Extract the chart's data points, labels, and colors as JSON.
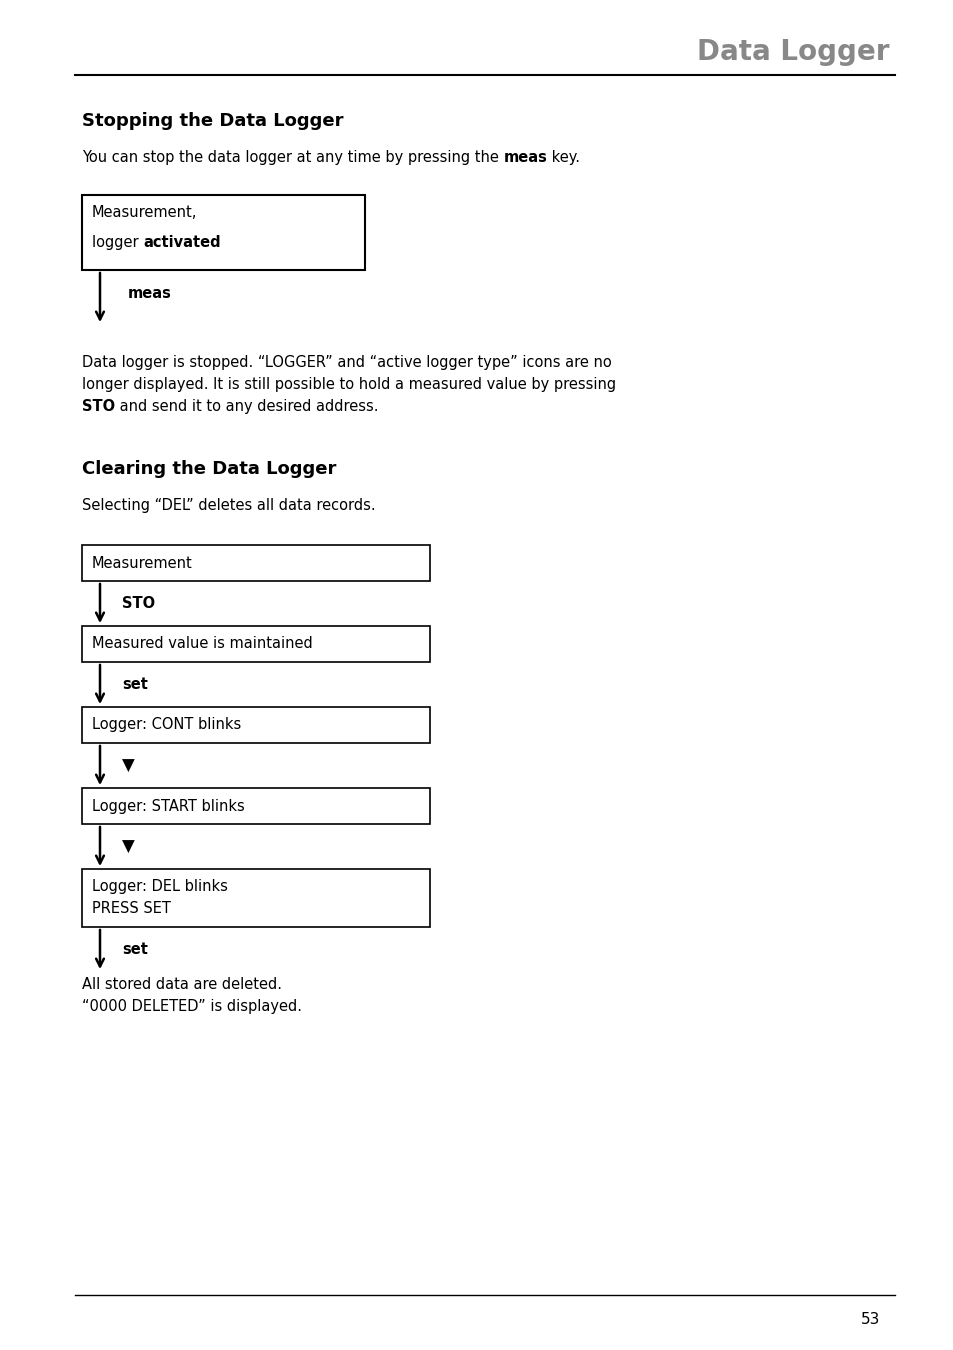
{
  "page_title": "Data Logger",
  "page_title_color": "#888888",
  "section1_heading": "Stopping the Data Logger",
  "section2_heading": "Clearing the Data Logger",
  "section1_intro_parts": [
    {
      "text": "You can stop the data logger at any time by pressing the ",
      "bold": false
    },
    {
      "text": "meas",
      "bold": true
    },
    {
      "text": " key.",
      "bold": false
    }
  ],
  "box1_lines": [
    [
      {
        "text": "Measurement,",
        "bold": false
      }
    ],
    [
      {
        "text": "logger ",
        "bold": false
      },
      {
        "text": "activated",
        "bold": true
      }
    ]
  ],
  "arrow1_label": "meas",
  "section1_body_lines": [
    [
      {
        "text": "Data logger is stopped. “LOGGER” and “active logger type” icons are no",
        "bold": false
      }
    ],
    [
      {
        "text": "longer displayed. It is still possible to hold a measured value by pressing",
        "bold": false
      }
    ],
    [
      {
        "text": "STO",
        "bold": true
      },
      {
        "text": " and send it to any desired address.",
        "bold": false
      }
    ]
  ],
  "section2_intro": "Selecting “DEL” deletes all data records.",
  "flow_boxes": [
    {
      "lines": [
        {
          "text": "Measurement",
          "bold": false
        }
      ]
    },
    {
      "lines": [
        {
          "text": "Measured value is maintained",
          "bold": false
        }
      ]
    },
    {
      "lines": [
        {
          "text": "Logger: CONT blinks",
          "bold": false
        }
      ]
    },
    {
      "lines": [
        {
          "text": "Logger: START blinks",
          "bold": false
        }
      ]
    },
    {
      "lines": [
        {
          "text": "Logger: DEL blinks",
          "bold": false
        },
        {
          "text": "PRESS SET",
          "bold": false
        }
      ]
    }
  ],
  "flow_arrow_labels": [
    {
      "text": "STO",
      "bold": true,
      "is_triangle": false
    },
    {
      "text": "set",
      "bold": true,
      "is_triangle": false
    },
    {
      "text": "▼",
      "bold": false,
      "is_triangle": true
    },
    {
      "text": "▼",
      "bold": false,
      "is_triangle": true
    },
    {
      "text": "set",
      "bold": true,
      "is_triangle": false
    }
  ],
  "section2_body_lines": [
    "All stored data are deleted.",
    "“0000 DELETED” is displayed."
  ],
  "page_number": "53",
  "bg_color": "#ffffff",
  "text_color": "#000000",
  "box_border_color": "#000000"
}
